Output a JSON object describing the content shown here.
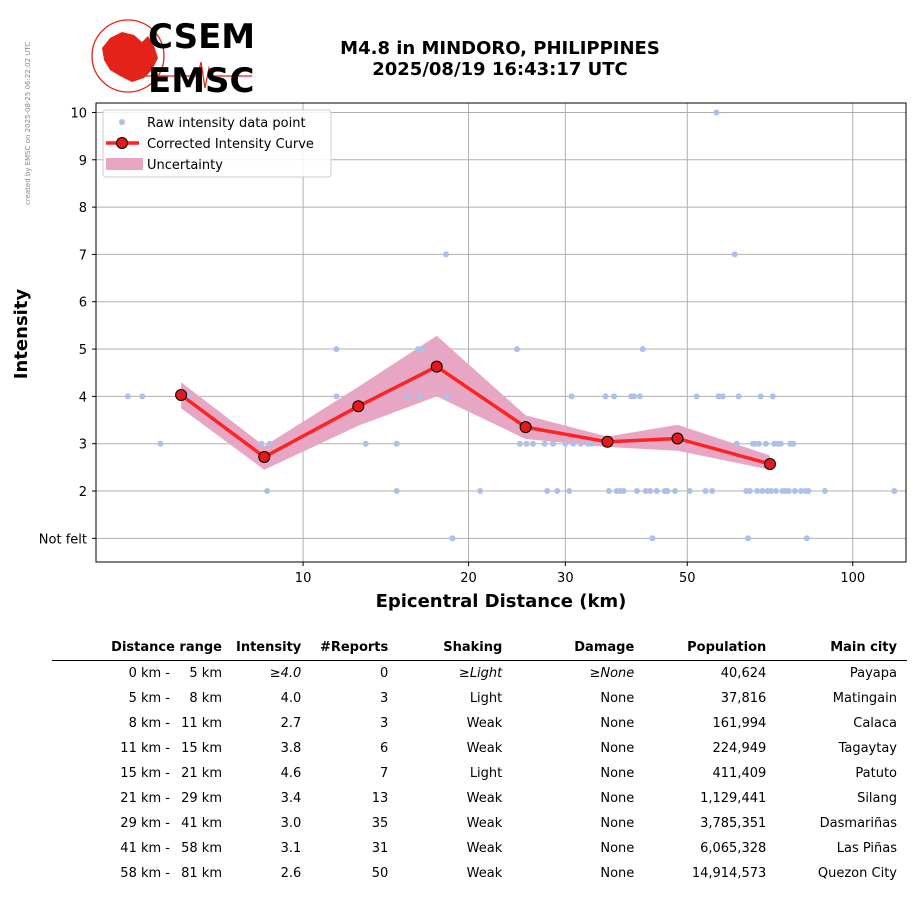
{
  "side_note": "created by EMSC on 2025-08-25 06:22:02 UTC",
  "logo": {
    "line1": "CSEM",
    "line2": "EMSC"
  },
  "header": {
    "title_line1": "M4.8 in MINDORO, PHILIPPINES",
    "title_line2": "2025/08/19 16:43:17 UTC"
  },
  "colors": {
    "raw": "#aec0ea",
    "curve": "#ff2222",
    "marker_fill": "#e31a1c",
    "uncertainty": "#e7a6c4",
    "grid": "#b0b0b0",
    "logo_red": "#e32219"
  },
  "chart_data": {
    "type": "scatter",
    "xscale": "log",
    "xlabel": "Epicentral Distance (km)",
    "ylabel": "Intensity",
    "xlim": [
      4.2,
      125
    ],
    "ylim": [
      0.5,
      10.2
    ],
    "xticks": [
      10,
      20,
      30,
      50,
      100
    ],
    "yticks": [
      1,
      2,
      3,
      4,
      5,
      6,
      7,
      8,
      9,
      10
    ],
    "ytick_labels": [
      "Not felt",
      "2",
      "3",
      "4",
      "5",
      "6",
      "7",
      "8",
      "9",
      "10"
    ],
    "grid": true,
    "legend": {
      "position": "top-left",
      "entries": [
        "Raw intensity data point",
        "Corrected Intensity Curve",
        "Uncertainty"
      ]
    },
    "raw_points": [
      [
        4.8,
        4
      ],
      [
        5.1,
        4
      ],
      [
        5.5,
        3
      ],
      [
        6.2,
        4
      ],
      [
        8.4,
        3
      ],
      [
        8.6,
        2
      ],
      [
        8.7,
        3
      ],
      [
        11.5,
        5
      ],
      [
        11.5,
        4
      ],
      [
        13,
        3
      ],
      [
        14.8,
        2
      ],
      [
        14.8,
        3
      ],
      [
        15.5,
        4
      ],
      [
        16.2,
        5
      ],
      [
        16.3,
        4
      ],
      [
        16.5,
        5
      ],
      [
        18.2,
        7
      ],
      [
        18.3,
        4
      ],
      [
        18.7,
        1
      ],
      [
        21,
        2
      ],
      [
        24.5,
        5
      ],
      [
        24.8,
        3
      ],
      [
        25.5,
        3
      ],
      [
        26.2,
        3
      ],
      [
        27.5,
        3
      ],
      [
        27.8,
        2
      ],
      [
        28.5,
        3
      ],
      [
        29,
        2
      ],
      [
        30,
        3
      ],
      [
        30.5,
        2
      ],
      [
        30.8,
        4
      ],
      [
        31,
        3
      ],
      [
        32,
        3
      ],
      [
        33,
        3
      ],
      [
        33.5,
        3
      ],
      [
        35.5,
        4
      ],
      [
        36,
        2
      ],
      [
        36.8,
        4
      ],
      [
        37.2,
        2
      ],
      [
        37.8,
        2
      ],
      [
        38.3,
        2
      ],
      [
        39.5,
        4
      ],
      [
        40,
        4
      ],
      [
        40.5,
        2
      ],
      [
        41,
        4
      ],
      [
        41.5,
        5
      ],
      [
        42,
        2
      ],
      [
        42.8,
        2
      ],
      [
        43.2,
        1
      ],
      [
        44,
        2
      ],
      [
        45.5,
        2
      ],
      [
        46,
        2
      ],
      [
        47.5,
        2
      ],
      [
        50.5,
        2
      ],
      [
        52,
        4
      ],
      [
        54,
        2
      ],
      [
        55.5,
        2
      ],
      [
        56.5,
        10
      ],
      [
        57,
        4
      ],
      [
        58,
        4
      ],
      [
        61,
        7
      ],
      [
        61.5,
        3
      ],
      [
        62,
        4
      ],
      [
        64,
        2
      ],
      [
        64.5,
        1
      ],
      [
        65,
        2
      ],
      [
        65.8,
        3
      ],
      [
        66.5,
        3
      ],
      [
        67,
        2
      ],
      [
        67.5,
        3
      ],
      [
        68,
        4
      ],
      [
        68.5,
        2
      ],
      [
        69.5,
        3
      ],
      [
        70,
        2
      ],
      [
        71,
        2
      ],
      [
        71.5,
        4
      ],
      [
        72,
        3
      ],
      [
        72.5,
        2
      ],
      [
        73,
        3
      ],
      [
        74,
        3
      ],
      [
        74.5,
        2
      ],
      [
        75.5,
        2
      ],
      [
        76.5,
        2
      ],
      [
        77,
        3
      ],
      [
        78,
        3
      ],
      [
        78.5,
        2
      ],
      [
        80.5,
        2
      ],
      [
        82,
        2
      ],
      [
        82.5,
        1
      ],
      [
        83,
        2
      ],
      [
        89,
        2
      ],
      [
        119,
        2
      ]
    ],
    "curve": {
      "x": [
        6.0,
        8.5,
        12.6,
        17.5,
        25.4,
        35.8,
        48.0,
        70.7
      ],
      "y": [
        4.03,
        2.72,
        3.79,
        4.63,
        3.35,
        3.04,
        3.11,
        2.57
      ]
    },
    "uncertainty": {
      "upper": [
        4.3,
        2.95,
        4.2,
        5.28,
        3.6,
        3.15,
        3.4,
        2.75
      ],
      "lower": [
        3.75,
        2.45,
        3.38,
        4.0,
        3.1,
        2.93,
        2.85,
        2.45
      ]
    }
  },
  "table": {
    "headers": [
      "Distance range",
      "Intensity",
      "#Reports",
      "Shaking",
      "Damage",
      "Population",
      "Main city"
    ],
    "rows": [
      {
        "from": "0 km -",
        "to": "5 km",
        "intensity": "≥4.0",
        "reports": "0",
        "shaking": "≥Light",
        "damage": "≥None",
        "population": "40,624",
        "city": "Payapa",
        "italic": true
      },
      {
        "from": "5 km -",
        "to": "8 km",
        "intensity": "4.0",
        "reports": "3",
        "shaking": "Light",
        "damage": "None",
        "population": "37,816",
        "city": "Matingain"
      },
      {
        "from": "8 km -",
        "to": "11 km",
        "intensity": "2.7",
        "reports": "3",
        "shaking": "Weak",
        "damage": "None",
        "population": "161,994",
        "city": "Calaca"
      },
      {
        "from": "11 km -",
        "to": "15 km",
        "intensity": "3.8",
        "reports": "6",
        "shaking": "Weak",
        "damage": "None",
        "population": "224,949",
        "city": "Tagaytay"
      },
      {
        "from": "15 km -",
        "to": "21 km",
        "intensity": "4.6",
        "reports": "7",
        "shaking": "Light",
        "damage": "None",
        "population": "411,409",
        "city": "Patuto"
      },
      {
        "from": "21 km -",
        "to": "29 km",
        "intensity": "3.4",
        "reports": "13",
        "shaking": "Weak",
        "damage": "None",
        "population": "1,129,441",
        "city": "Silang"
      },
      {
        "from": "29 km -",
        "to": "41 km",
        "intensity": "3.0",
        "reports": "35",
        "shaking": "Weak",
        "damage": "None",
        "population": "3,785,351",
        "city": "Dasmariñas"
      },
      {
        "from": "41 km -",
        "to": "58 km",
        "intensity": "3.1",
        "reports": "31",
        "shaking": "Weak",
        "damage": "None",
        "population": "6,065,328",
        "city": "Las Piñas"
      },
      {
        "from": "58 km -",
        "to": "81 km",
        "intensity": "2.6",
        "reports": "50",
        "shaking": "Weak",
        "damage": "None",
        "population": "14,914,573",
        "city": "Quezon City"
      }
    ]
  }
}
